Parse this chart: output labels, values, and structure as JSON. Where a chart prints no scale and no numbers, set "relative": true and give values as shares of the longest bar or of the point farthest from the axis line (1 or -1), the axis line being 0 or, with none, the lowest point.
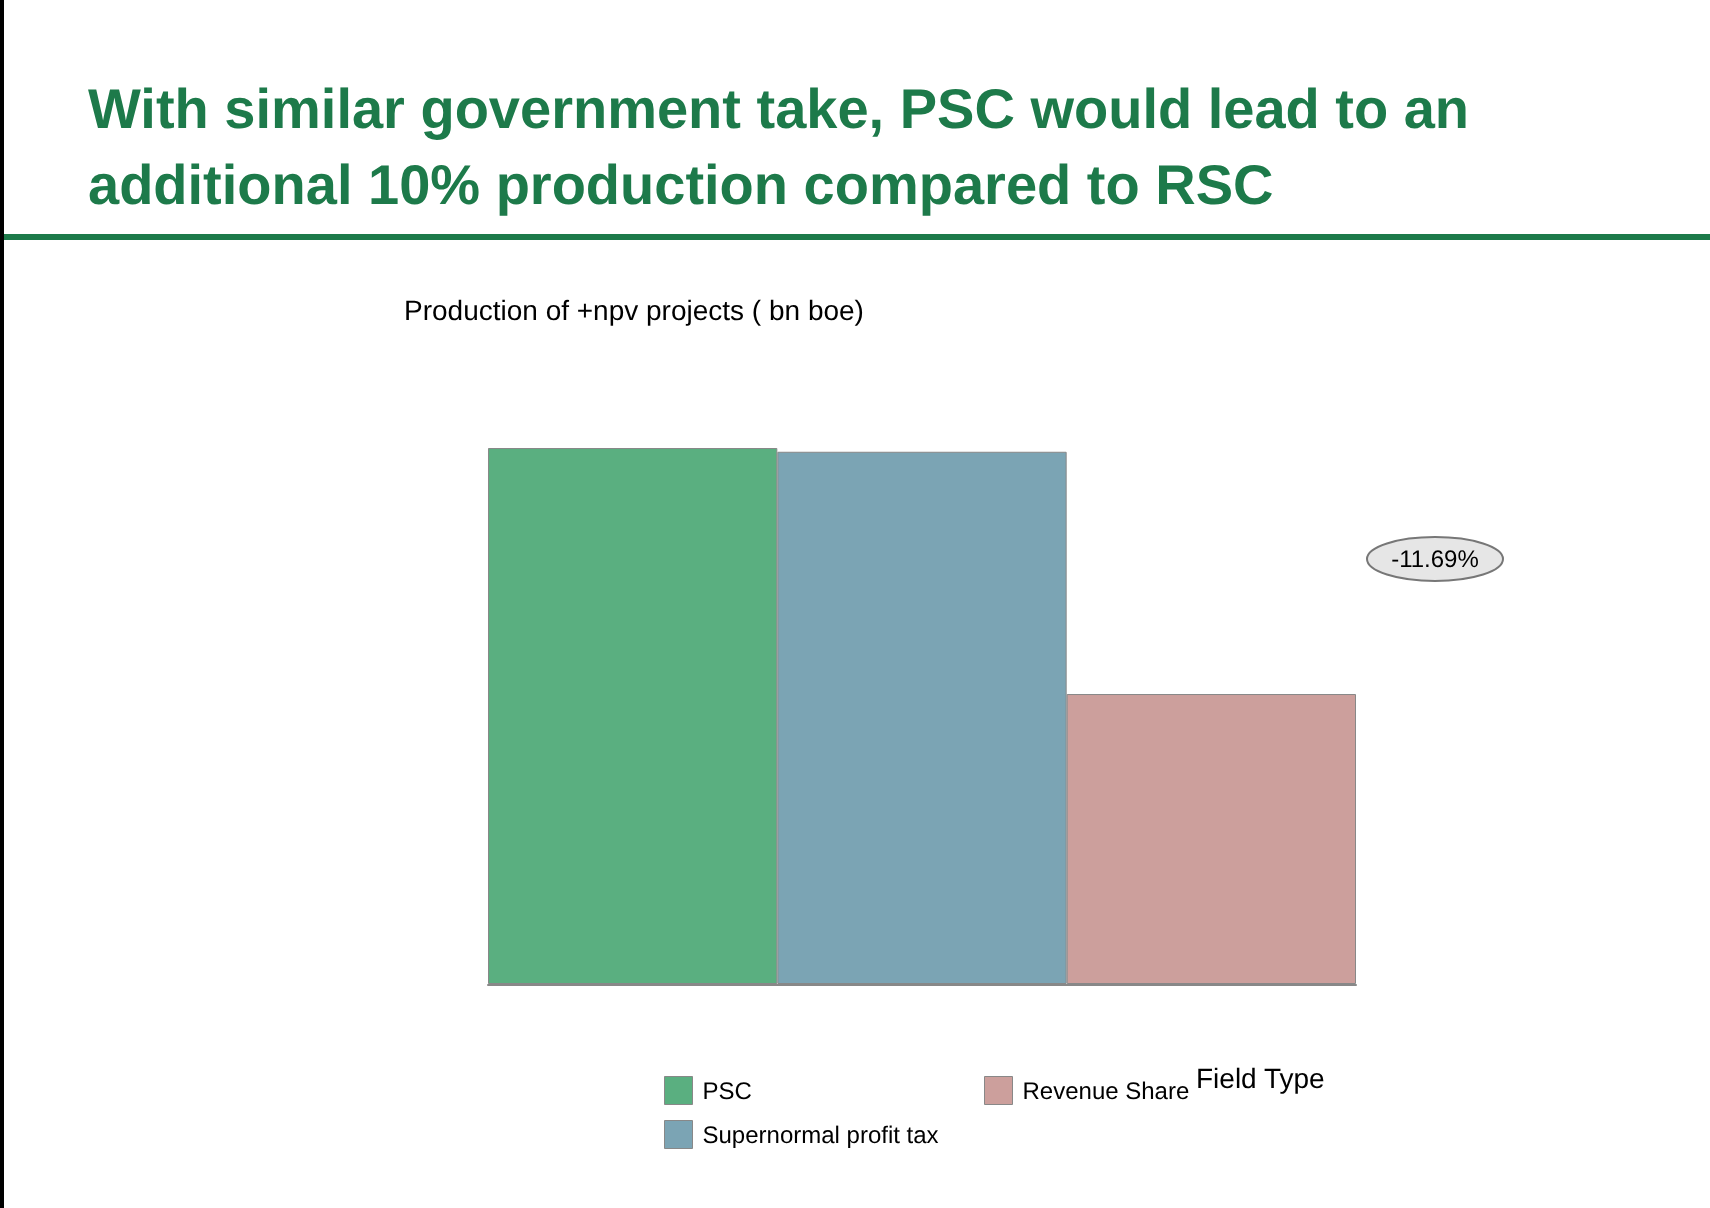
{
  "chart_data": {
    "type": "bar",
    "title": "With similar government take, PSC would lead to an additional 10% production compared to RSC",
    "ylabel": "Production of +npv projects ( bn boe)",
    "xlabel": "Field Type",
    "categories": [
      null,
      null,
      null
    ],
    "relative": true,
    "stacked": true,
    "legend": "bottom",
    "annotations": [
      "-11.69%"
    ],
    "series": [
      {
        "name": "PSC",
        "color": "#5aaf80",
        "values": [
          1,
          null,
          null
        ]
      },
      {
        "name": "Supernormal profit tax",
        "color": "#7ba4b4",
        "values": [
          null,
          0.993,
          null
        ]
      },
      {
        "name": "Revenue Share",
        "color": "#cc9f9c",
        "values": [
          null,
          null,
          0.541
        ]
      }
    ]
  }
}
